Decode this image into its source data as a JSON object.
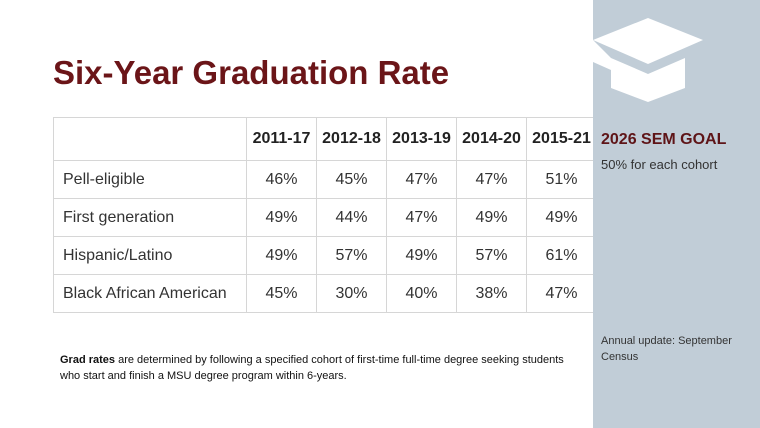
{
  "title": "Six-Year Graduation Rate",
  "table": {
    "header": [
      "",
      "2011-17",
      "2012-18",
      "2013-19",
      "2014-20",
      "2015-21"
    ],
    "rows": [
      [
        "Pell-eligible",
        "46%",
        "45%",
        "47%",
        "47%",
        "51%"
      ],
      [
        "First generation",
        "49%",
        "44%",
        "47%",
        "49%",
        "49%"
      ],
      [
        "Hispanic/Latino",
        "49%",
        "57%",
        "49%",
        "57%",
        "61%"
      ],
      [
        "Black African American",
        "45%",
        "30%",
        "40%",
        "38%",
        "47%"
      ]
    ]
  },
  "footnote": {
    "bold": "Grad rates",
    "text": " are determined by following a specified cohort of first-time full-time degree seeking students who start and finish a MSU degree program within 6-years."
  },
  "sidebar": {
    "goal_title": "2026 SEM GOAL",
    "goal_text": "50% for each cohort",
    "update_note": "Annual update: September Census"
  }
}
